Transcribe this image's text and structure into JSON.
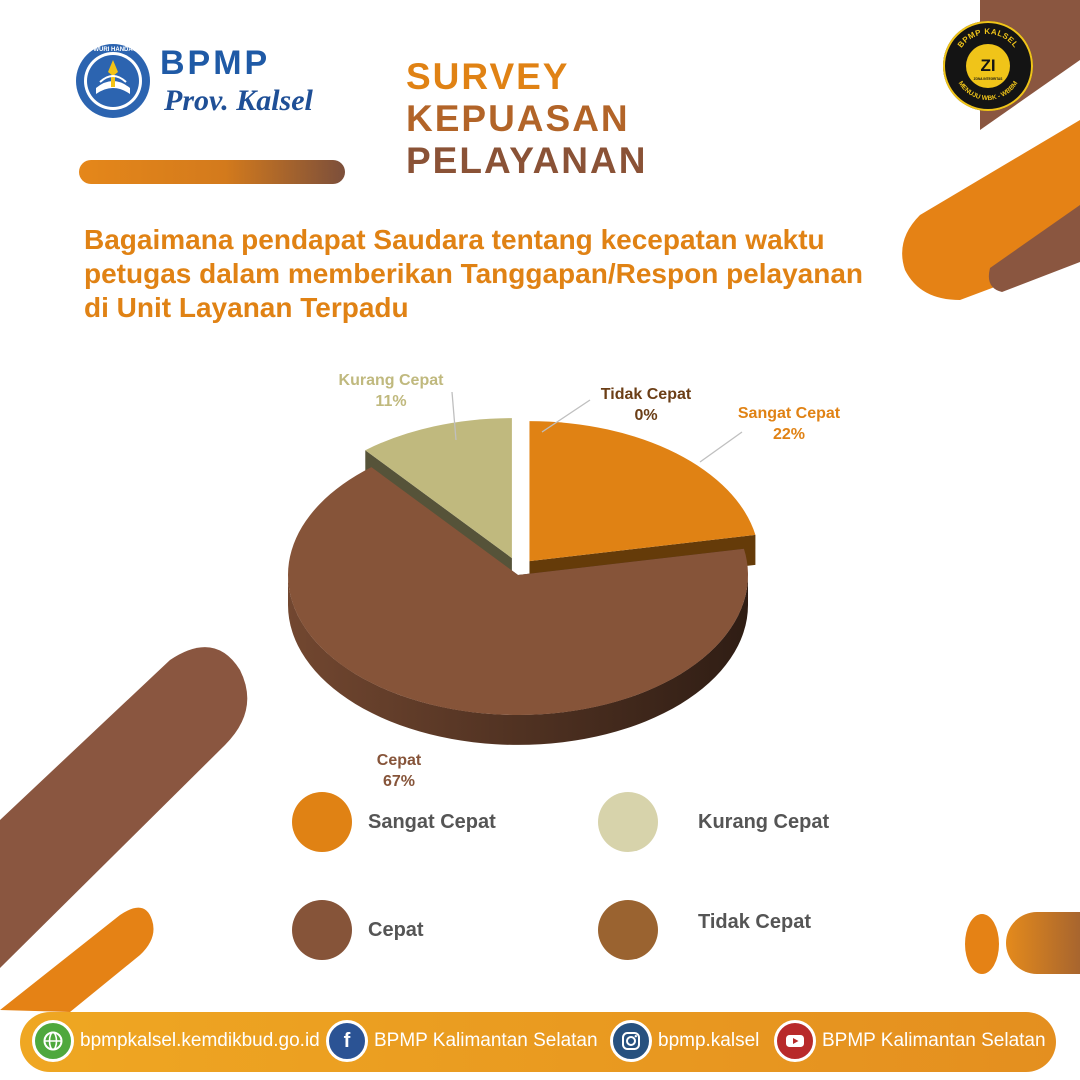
{
  "header": {
    "org_name": "BPMP",
    "org_sub": "Prov. Kalsel",
    "emblem_motto": "TUT WURI HANDAYANI",
    "badge": {
      "top_text": "BPMP KALSEL",
      "center_text": "ZI",
      "small_text": "ZONA INTEGRITAS",
      "bottom_text": "MENUJU WBK - WBBM"
    }
  },
  "title_lines": [
    "SURVEY",
    "KEPUASAN",
    "PELAYANAN"
  ],
  "question": "Bagaimana pendapat Saudara tentang kecepatan waktu petugas dalam memberikan Tanggapan/Respon pelayanan di Unit Layanan Terpadu",
  "chart_data": {
    "type": "pie",
    "title": "",
    "categories": [
      "Sangat Cepat",
      "Cepat",
      "Kurang Cepat",
      "Tidak Cepat"
    ],
    "values": [
      22,
      67,
      11,
      0
    ],
    "value_labels": [
      "22%",
      "67%",
      "11%",
      "0%"
    ],
    "colors": [
      "#e08214",
      "#865439",
      "#c0b97e",
      "#9a6330"
    ],
    "legend_colors": [
      "#e08214",
      "#865439",
      "#d7d3ab",
      "#9a6330"
    ],
    "legend_position": "bottom",
    "style": "3d-exploded"
  },
  "footer": {
    "items": [
      {
        "icon": "globe-icon",
        "text": "bpmpkalsel.kemdikbud.go.id",
        "color": "#4fa83d"
      },
      {
        "icon": "facebook-icon",
        "text": "BPMP Kalimantan Selatan",
        "color": "#2b5394",
        "glyph": "f"
      },
      {
        "icon": "instagram-icon",
        "text": "bpmp.kalsel",
        "color": "#27517f"
      },
      {
        "icon": "youtube-icon",
        "text": "BPMP Kalimantan Selatan",
        "color": "#b82a2a"
      }
    ]
  }
}
